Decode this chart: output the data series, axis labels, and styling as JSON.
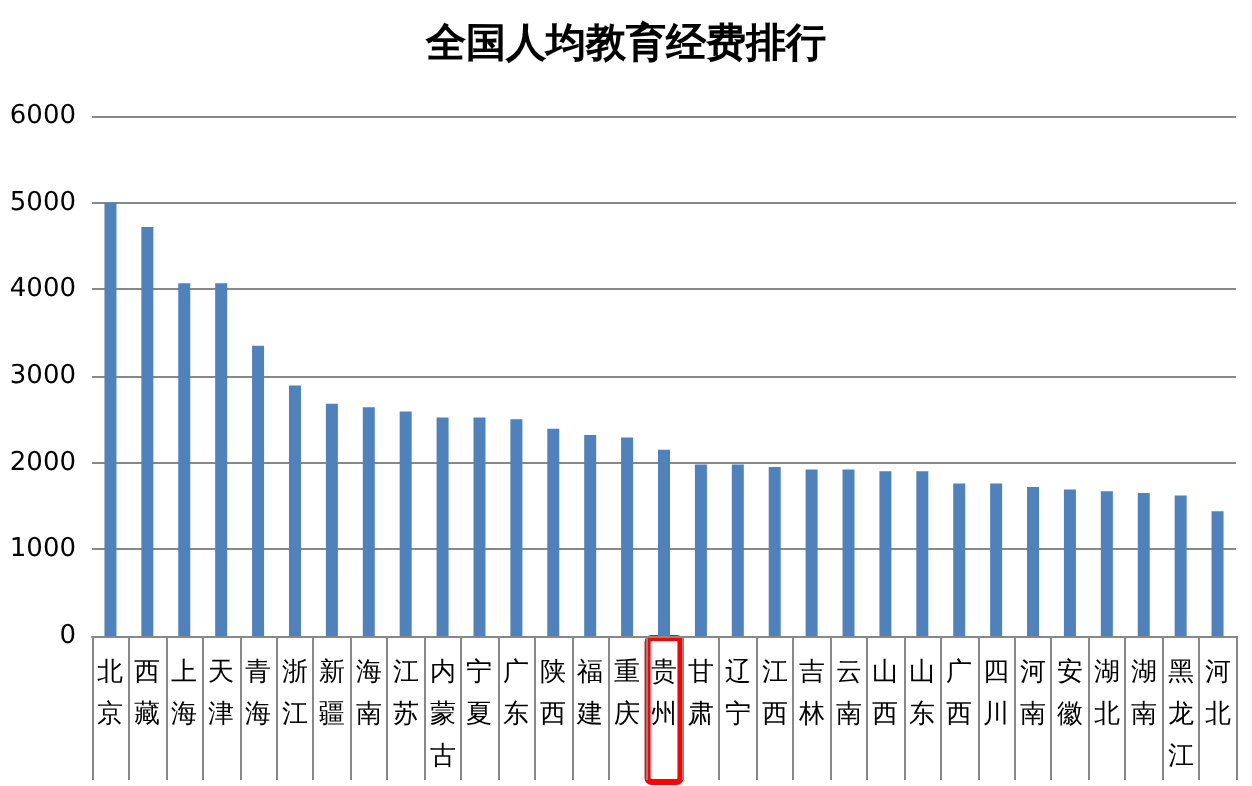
{
  "chart_data": {
    "type": "bar",
    "title": "全国人均教育经费排行",
    "categories": [
      "北京",
      "西藏",
      "上海",
      "天津",
      "青海",
      "浙江",
      "新疆",
      "海南",
      "江苏",
      "内蒙古",
      "宁夏",
      "广东",
      "陕西",
      "福建",
      "重庆",
      "贵州",
      "甘肃",
      "辽宁",
      "江西",
      "吉林",
      "云南",
      "山西",
      "山东",
      "广西",
      "四川",
      "河南",
      "安徽",
      "湖北",
      "湖南",
      "黑龙江",
      "河北"
    ],
    "values": [
      5000,
      4720,
      4070,
      4070,
      3350,
      2890,
      2680,
      2640,
      2590,
      2520,
      2520,
      2500,
      2390,
      2320,
      2290,
      2150,
      1980,
      1980,
      1950,
      1920,
      1920,
      1900,
      1900,
      1760,
      1760,
      1720,
      1690,
      1670,
      1650,
      1620,
      1440
    ],
    "color": "#4f81bd",
    "ylim": [
      0,
      6000
    ],
    "yticks": [
      0,
      1000,
      2000,
      3000,
      4000,
      5000,
      6000
    ],
    "grid": "y"
  }
}
